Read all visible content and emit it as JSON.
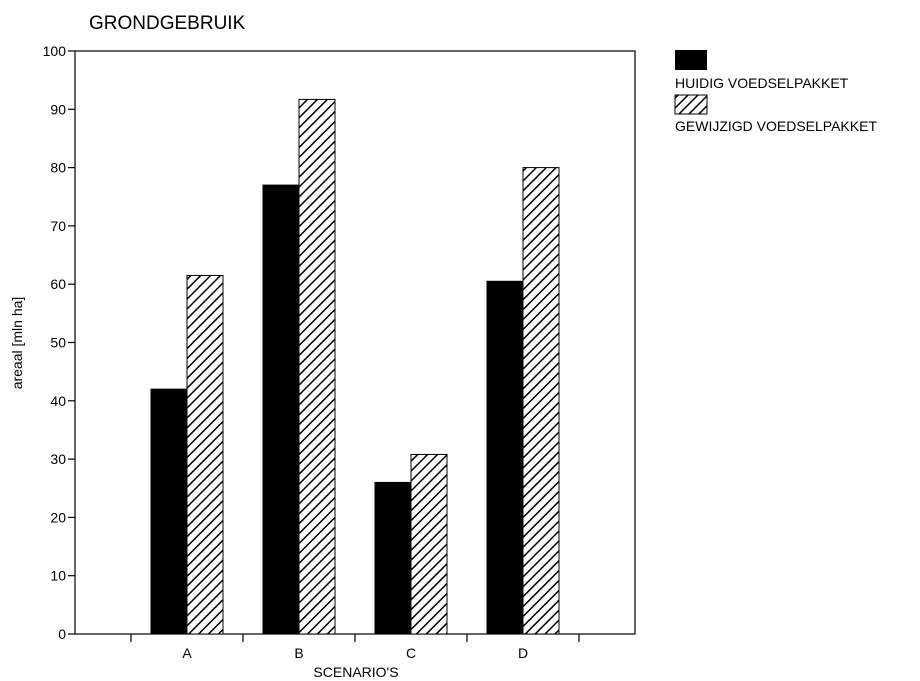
{
  "chart_data": {
    "type": "bar",
    "title": "GRONDGEBRUIK",
    "xlabel": "SCENARIO'S",
    "ylabel": "areaal [mln ha]",
    "categories": [
      "A",
      "B",
      "C",
      "D"
    ],
    "ylim": [
      0,
      100
    ],
    "yticks": [
      "0",
      "10",
      "20",
      "30",
      "40",
      "50",
      "60",
      "70",
      "80",
      "90",
      "100"
    ],
    "grid": false,
    "legend_position": "top-right outside",
    "series": [
      {
        "name": "HUIDIG VOEDSELPAKKET",
        "values": [
          42,
          77,
          26,
          60.5
        ],
        "fill": "#000000",
        "pattern": "solid"
      },
      {
        "name": "GEWIJZIGD VOEDSELPAKKET",
        "values": [
          61.5,
          91.7,
          30.8,
          80
        ],
        "fill": "#000000",
        "pattern": "diagonal-hatch"
      }
    ]
  }
}
